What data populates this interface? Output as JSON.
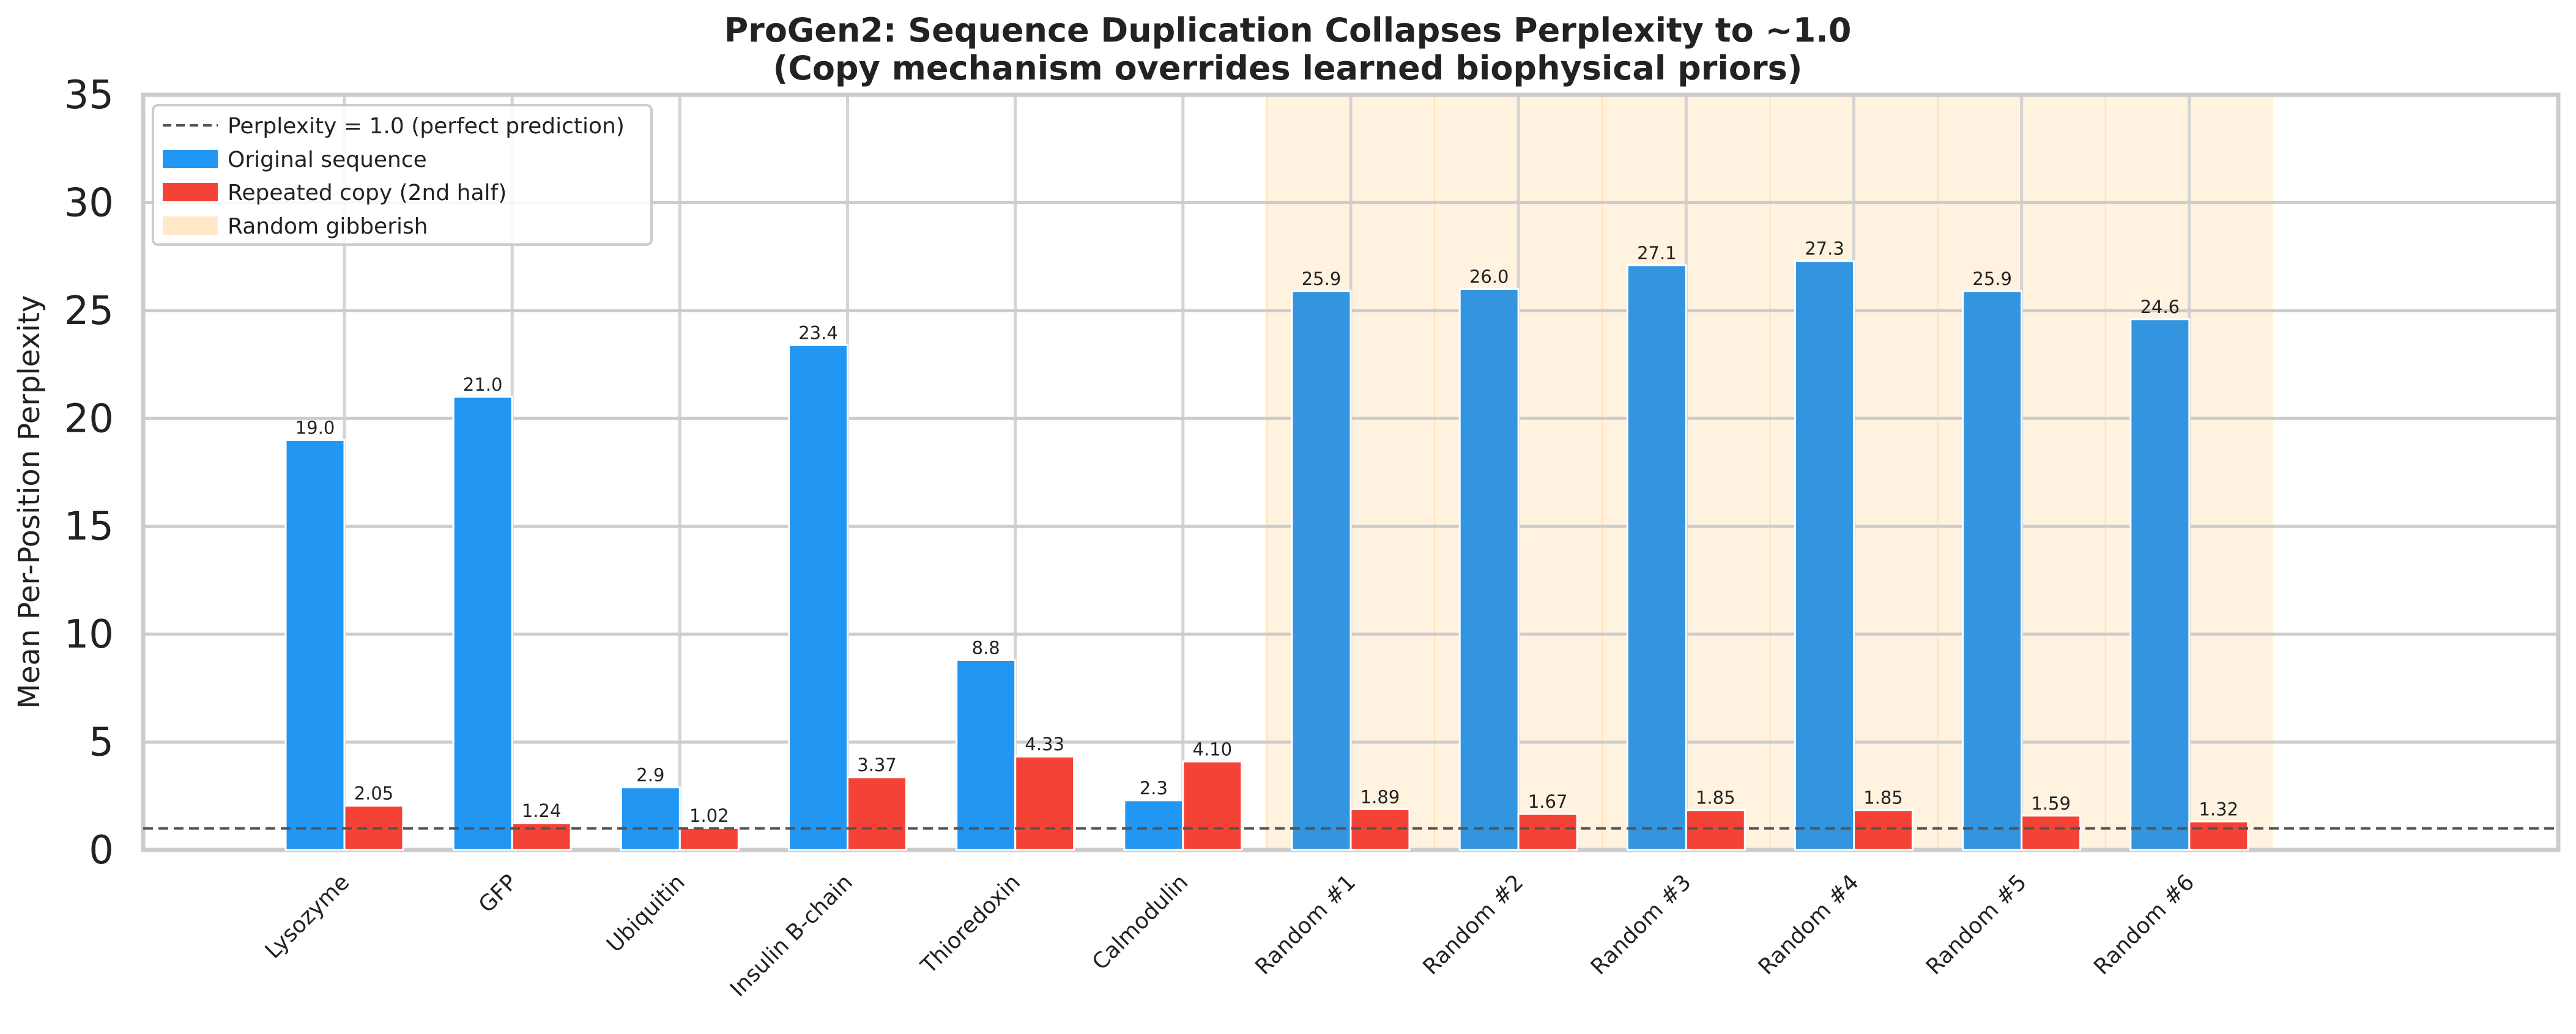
{
  "chart_data": {
    "type": "bar",
    "title": "ProGen2: Sequence Duplication Collapses Perplexity to ~1.0",
    "subtitle": "(Copy mechanism overrides learned biophysical priors)",
    "xlabel": "",
    "ylabel": "Mean Per-Position Perplexity",
    "ylim": [
      0,
      35
    ],
    "yticks": [
      "0",
      "5",
      "10",
      "15",
      "20",
      "25",
      "30",
      "35"
    ],
    "categories": [
      "Lysozyme",
      "GFP",
      "Ubiquitin",
      "Insulin B-chain",
      "Thioredoxin",
      "Calmodulin",
      "Random #1",
      "Random #2",
      "Random #3",
      "Random #4",
      "Random #5",
      "Random #6"
    ],
    "series": [
      {
        "name": "Original sequence",
        "color": "#2196f3",
        "values": [
          19.0,
          21.0,
          2.9,
          23.4,
          8.8,
          2.3,
          25.9,
          26.0,
          27.1,
          27.3,
          25.9,
          24.6
        ],
        "labels": [
          "19.0",
          "21.0",
          "2.9",
          "23.4",
          "8.8",
          "2.3",
          "25.9",
          "26.0",
          "27.1",
          "27.3",
          "25.9",
          "24.6"
        ]
      },
      {
        "name": "Repeated copy (2nd half)",
        "color": "#f44336",
        "values": [
          2.05,
          1.24,
          1.02,
          3.37,
          4.33,
          4.1,
          1.89,
          1.67,
          1.85,
          1.85,
          1.59,
          1.32
        ],
        "labels": [
          "2.05",
          "1.24",
          "1.02",
          "3.37",
          "4.33",
          "4.10",
          "1.89",
          "1.67",
          "1.85",
          "1.85",
          "1.59",
          "1.32"
        ]
      }
    ],
    "reference_line": {
      "value": 1.0,
      "label": "Perplexity = 1.0 (perfect prediction)",
      "color": "#555555"
    },
    "highlight": {
      "label": "Random gibberish",
      "color": "#fff3e0",
      "categories": [
        "Random #1",
        "Random #2",
        "Random #3",
        "Random #4",
        "Random #5",
        "Random #6"
      ]
    },
    "legend": [
      "Perplexity = 1.0 (perfect prediction)",
      "Original sequence",
      "Repeated copy (2nd half)",
      "Random gibberish"
    ],
    "legend_position": "top-left",
    "grid": true
  }
}
